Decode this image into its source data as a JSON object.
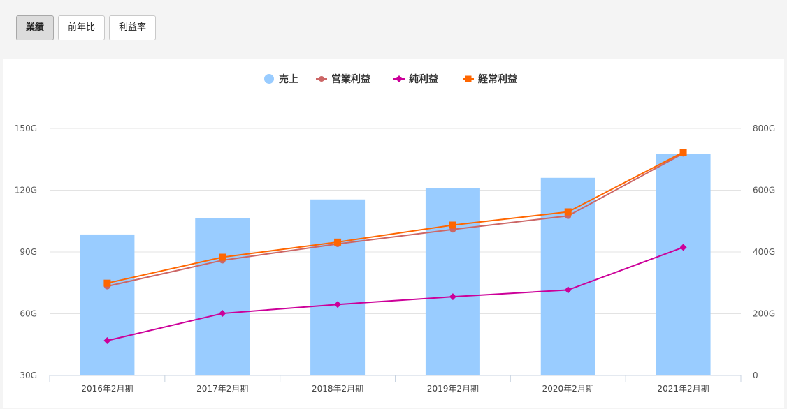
{
  "tabs": [
    {
      "label": "業績",
      "active": true
    },
    {
      "label": "前年比",
      "active": false
    },
    {
      "label": "利益率",
      "active": false
    }
  ],
  "chart_data": {
    "type": "bar",
    "categories": [
      "2016年2月期",
      "2017年2月期",
      "2018年2月期",
      "2019年2月期",
      "2020年2月期",
      "2021年2月期"
    ],
    "left_axis": {
      "ticks": [
        "30G",
        "60G",
        "90G",
        "120G",
        "150G"
      ],
      "tick_values": [
        30,
        60,
        90,
        120,
        150
      ],
      "range": [
        30,
        150
      ]
    },
    "right_axis": {
      "ticks": [
        "0",
        "200G",
        "400G",
        "600G",
        "800G"
      ],
      "tick_values": [
        0,
        200,
        400,
        600,
        800
      ],
      "range": [
        0,
        800
      ]
    },
    "series": [
      {
        "name": "売上",
        "type": "bar",
        "axis": "left",
        "color": "#99ccff",
        "values": [
          98.5,
          106.5,
          115.5,
          121,
          126,
          137.5
        ]
      },
      {
        "name": "営業利益",
        "type": "line",
        "axis": "right",
        "color": "#cc6666",
        "marker": "circle",
        "values": [
          289,
          373,
          426,
          473,
          517,
          719
        ]
      },
      {
        "name": "純利益",
        "type": "line",
        "axis": "right",
        "color": "#cc0099",
        "marker": "diamond",
        "values": [
          113,
          201,
          230,
          255,
          277,
          415
        ]
      },
      {
        "name": "経常利益",
        "type": "line",
        "axis": "right",
        "color": "#ff6600",
        "marker": "square",
        "values": [
          299,
          383,
          432,
          487,
          530,
          723
        ]
      }
    ],
    "grid": true,
    "legend_position": "top-center"
  }
}
